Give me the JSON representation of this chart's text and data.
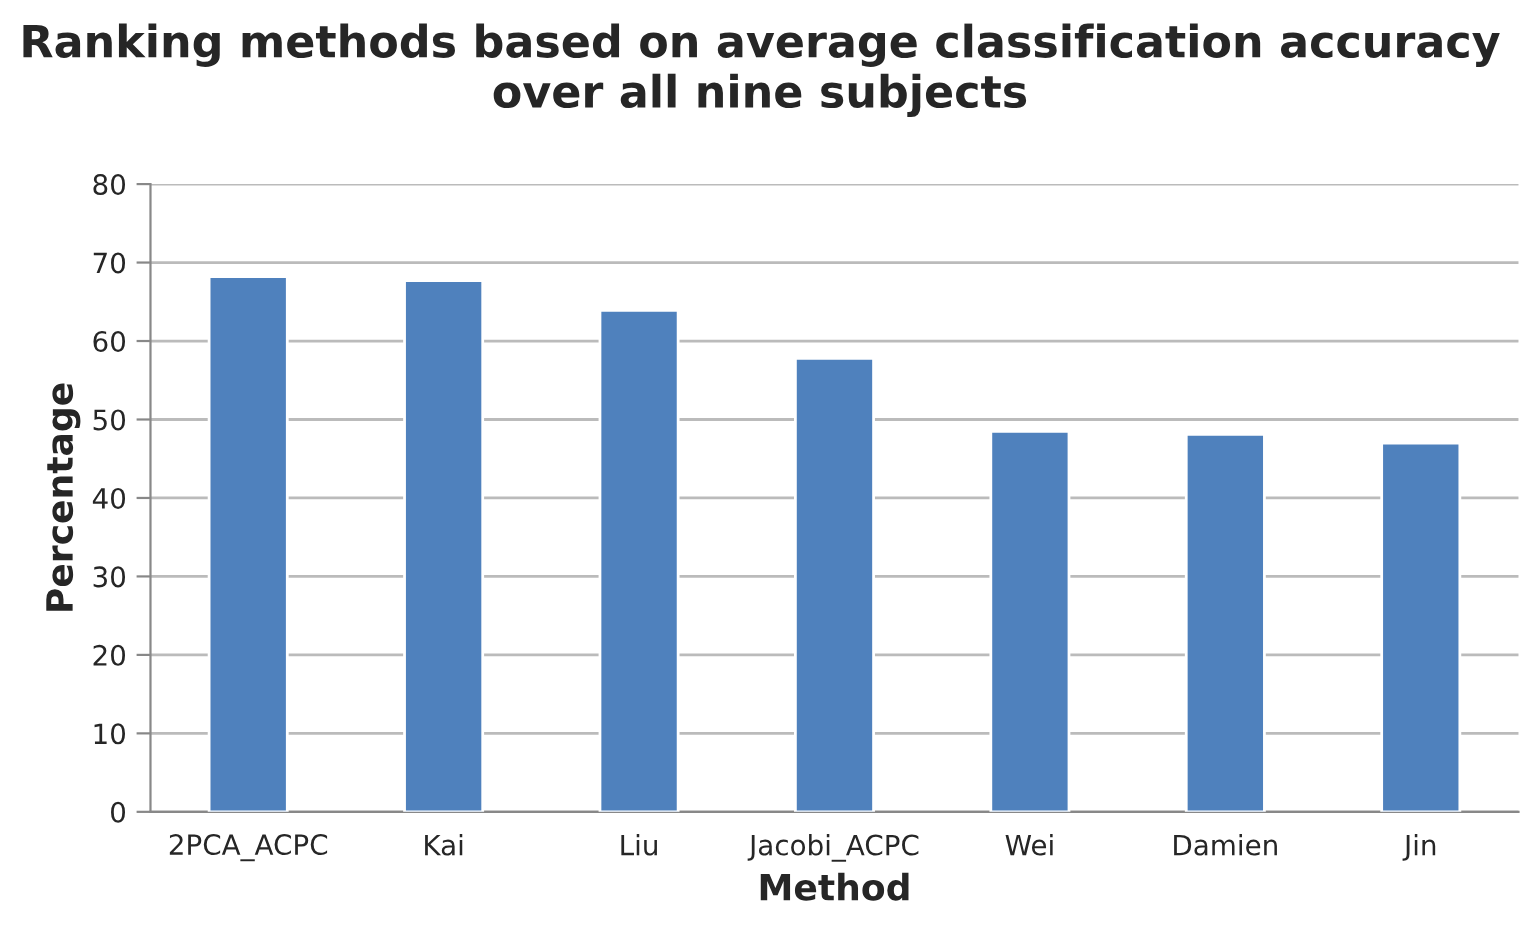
{
  "chart_data": {
    "type": "bar",
    "title": "Ranking methods based on average classification accuracy over all nine subjects",
    "xlabel": "Method",
    "ylabel": "Percentage",
    "categories": [
      "2PCA_ACPC",
      "Kai",
      "Liu",
      "Jacobi_ACPC",
      "Wei",
      "Damien",
      "Jin"
    ],
    "values": [
      68.2,
      67.7,
      63.9,
      57.8,
      48.5,
      48.1,
      47.0
    ],
    "color": "#4f81bd",
    "ylim": [
      0,
      80
    ],
    "yticks": [
      0,
      10,
      20,
      30,
      40,
      50,
      60,
      70,
      80
    ],
    "grid": "y"
  }
}
